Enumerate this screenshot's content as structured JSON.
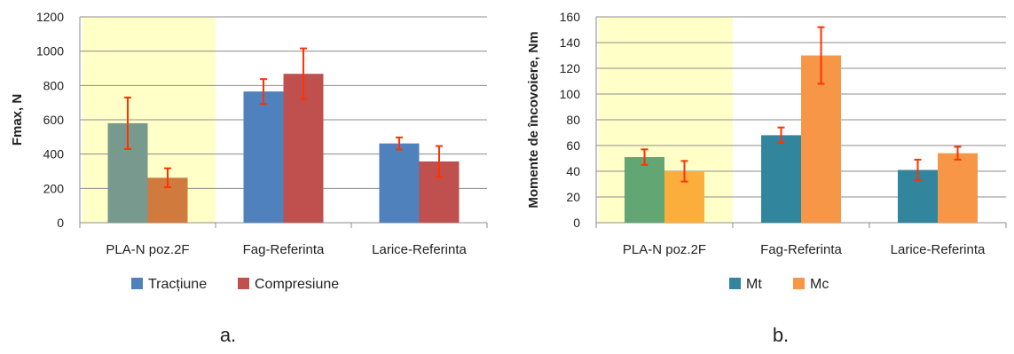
{
  "chart_data": [
    {
      "type": "bar",
      "panel_label": "a.",
      "ylabel": "Fmax, N",
      "ylim": [
        0,
        1200
      ],
      "yticks": [
        0,
        200,
        400,
        600,
        800,
        1000,
        1200
      ],
      "grid": true,
      "legend_position": "bottom",
      "categories": [
        "PLA-N poz.2F",
        "Fag-Referinta",
        "Larice-Referinta"
      ],
      "highlight_category": 0,
      "highlight_color": "#ffffc8",
      "series": [
        {
          "name": "Tracțiune",
          "color": "#4f81bd",
          "values": [
            580,
            765,
            462
          ],
          "errors": [
            150,
            72,
            35
          ],
          "category_colors": [
            "#77998e",
            null,
            null
          ]
        },
        {
          "name": "Compresiune",
          "color": "#c0504d",
          "values": [
            262,
            868,
            357
          ],
          "errors": [
            55,
            148,
            90
          ],
          "category_colors": [
            "#d07a3e",
            null,
            null
          ]
        }
      ],
      "error_color": "#ff3300"
    },
    {
      "type": "bar",
      "panel_label": "b.",
      "ylabel": "Momente de încovoiere, Nm",
      "ylim": [
        0,
        160
      ],
      "yticks": [
        0,
        20,
        40,
        60,
        80,
        100,
        120,
        140,
        160
      ],
      "grid": true,
      "legend_position": "bottom",
      "categories": [
        "PLA-N poz.2F",
        "Fag-Referinta",
        "Larice-Referinta"
      ],
      "highlight_category": 0,
      "highlight_color": "#ffffc8",
      "series": [
        {
          "name": "Mt",
          "color": "#31859c",
          "values": [
            51,
            68,
            41
          ],
          "errors": [
            6,
            6,
            8
          ],
          "category_colors": [
            "#62a673",
            null,
            null
          ]
        },
        {
          "name": "Mc",
          "color": "#f79646",
          "values": [
            40,
            130,
            54
          ],
          "errors": [
            8,
            22,
            5
          ],
          "category_colors": [
            "#fbae3c",
            null,
            null
          ]
        }
      ],
      "error_color": "#ff3300"
    }
  ]
}
